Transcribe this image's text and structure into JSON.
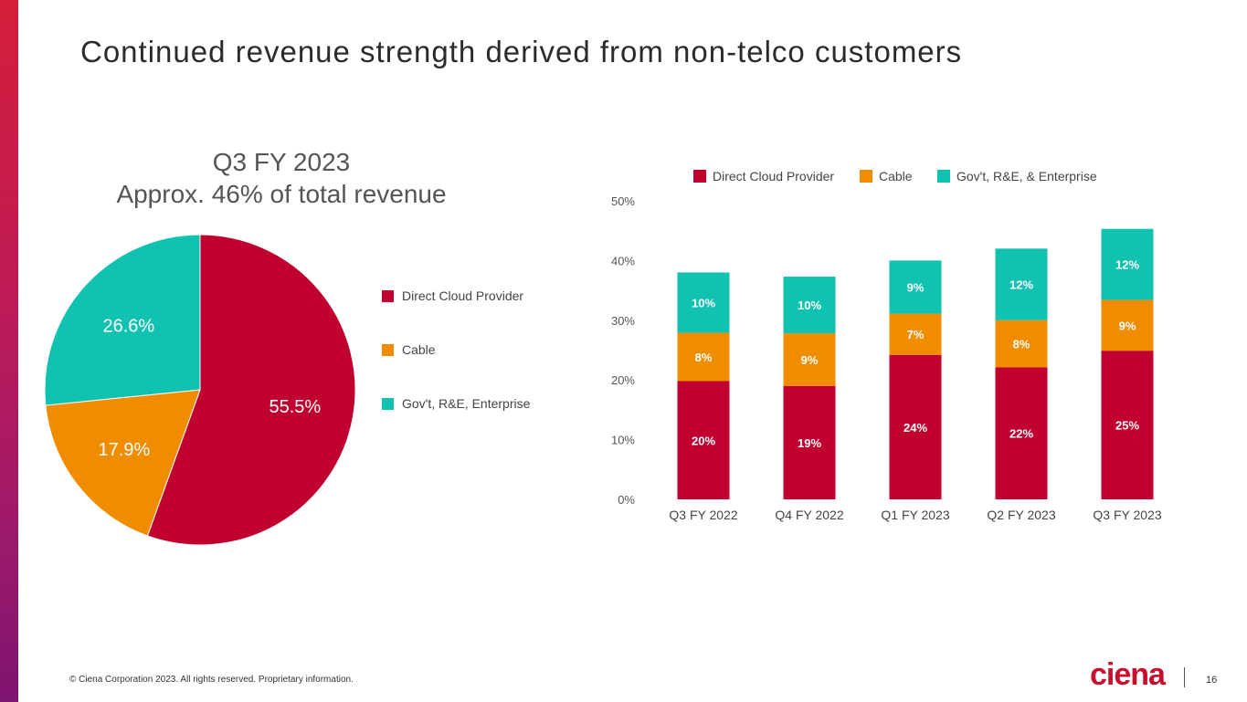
{
  "slide": {
    "title": "Continued revenue strength derived from non-telco customers",
    "footer": "© Ciena Corporation 2023. All rights reserved. Proprietary information.",
    "logo": "ciena",
    "page_number": "16"
  },
  "colors": {
    "direct_cloud": "#c0002f",
    "cable": "#f08c00",
    "enterprise": "#12c2b0"
  },
  "chart_data": [
    {
      "type": "pie",
      "title": "Q3 FY 2023",
      "subtitle": "Approx. 46% of total revenue",
      "legend_position": "right",
      "slices": [
        {
          "label": "Direct Cloud Provider",
          "value": 55.5,
          "display": "55.5%",
          "color": "#c0002f"
        },
        {
          "label": "Cable",
          "value": 17.9,
          "display": "17.9%",
          "color": "#f08c00"
        },
        {
          "label": "Gov't, R&E, Enterprise",
          "value": 26.6,
          "display": "26.6%",
          "color": "#12c2b0"
        }
      ]
    },
    {
      "type": "bar",
      "stacked": true,
      "legend_position": "top",
      "categories": [
        "Q3 FY 2022",
        "Q4 FY 2022",
        "Q1 FY 2023",
        "Q2 FY 2023",
        "Q3 FY 2023"
      ],
      "ylim": [
        0,
        50
      ],
      "yticks": [
        "0%",
        "10%",
        "20%",
        "30%",
        "40%",
        "50%"
      ],
      "grid": false,
      "series": [
        {
          "name": "Direct Cloud Provider",
          "color": "#c0002f",
          "values": [
            19.8,
            19.0,
            24.2,
            22.1,
            24.9
          ],
          "labels": [
            "20%",
            "19%",
            "24%",
            "22%",
            "25%"
          ]
        },
        {
          "name": "Cable",
          "color": "#f08c00",
          "values": [
            8.1,
            8.8,
            6.9,
            7.9,
            8.5
          ],
          "labels": [
            "8%",
            "9%",
            "7%",
            "8%",
            "9%"
          ]
        },
        {
          "name": "Gov't, R&E, & Enterprise",
          "color": "#12c2b0",
          "values": [
            10.1,
            9.5,
            8.9,
            12.0,
            11.9
          ],
          "labels": [
            "10%",
            "10%",
            "9%",
            "12%",
            "12%"
          ]
        }
      ]
    }
  ]
}
